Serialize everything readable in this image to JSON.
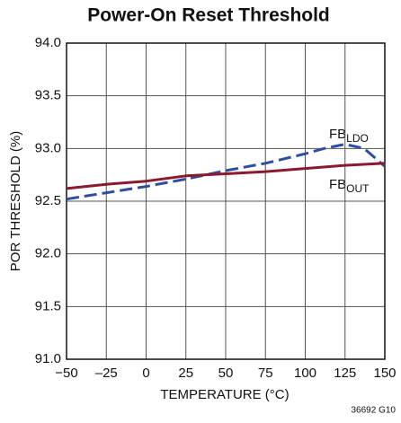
{
  "chart_data": {
    "type": "line",
    "title": "Power-On Reset Threshold",
    "xlabel": "TEMPERATURE (°C)",
    "ylabel": "POR THRESHOLD (%)",
    "annotation": "36692 G10",
    "xlim": [
      -50,
      150
    ],
    "xticks": [
      {
        "value": -50,
        "label": "−50"
      },
      {
        "value": -25,
        "label": "–25"
      },
      0,
      25,
      50,
      75,
      100,
      125,
      150
    ],
    "ylim": [
      91,
      94
    ],
    "yticks": [
      {
        "value": 91,
        "label": "91.0"
      },
      91.5,
      {
        "value": 92,
        "label": "92.0"
      },
      92.5,
      {
        "value": 93,
        "label": "93.0"
      },
      93.5,
      {
        "value": 94,
        "label": "94.0"
      }
    ],
    "grid": true,
    "series": [
      {
        "name": "FB",
        "subscript": "LDO",
        "color": "#2e4f9e",
        "dashed": true,
        "x": [
          -50,
          -25,
          0,
          25,
          50,
          75,
          100,
          112,
          125,
          137,
          150
        ],
        "values": [
          92.52,
          92.58,
          92.64,
          92.71,
          92.79,
          92.86,
          92.95,
          93.0,
          93.04,
          93.0,
          92.83
        ]
      },
      {
        "name": "FB",
        "subscript": "OUT",
        "color": "#8b1a2e",
        "dashed": false,
        "x": [
          -50,
          -25,
          0,
          25,
          50,
          75,
          100,
          125,
          150
        ],
        "values": [
          92.62,
          92.66,
          92.69,
          92.74,
          92.76,
          92.78,
          92.81,
          92.84,
          92.86
        ]
      }
    ]
  }
}
